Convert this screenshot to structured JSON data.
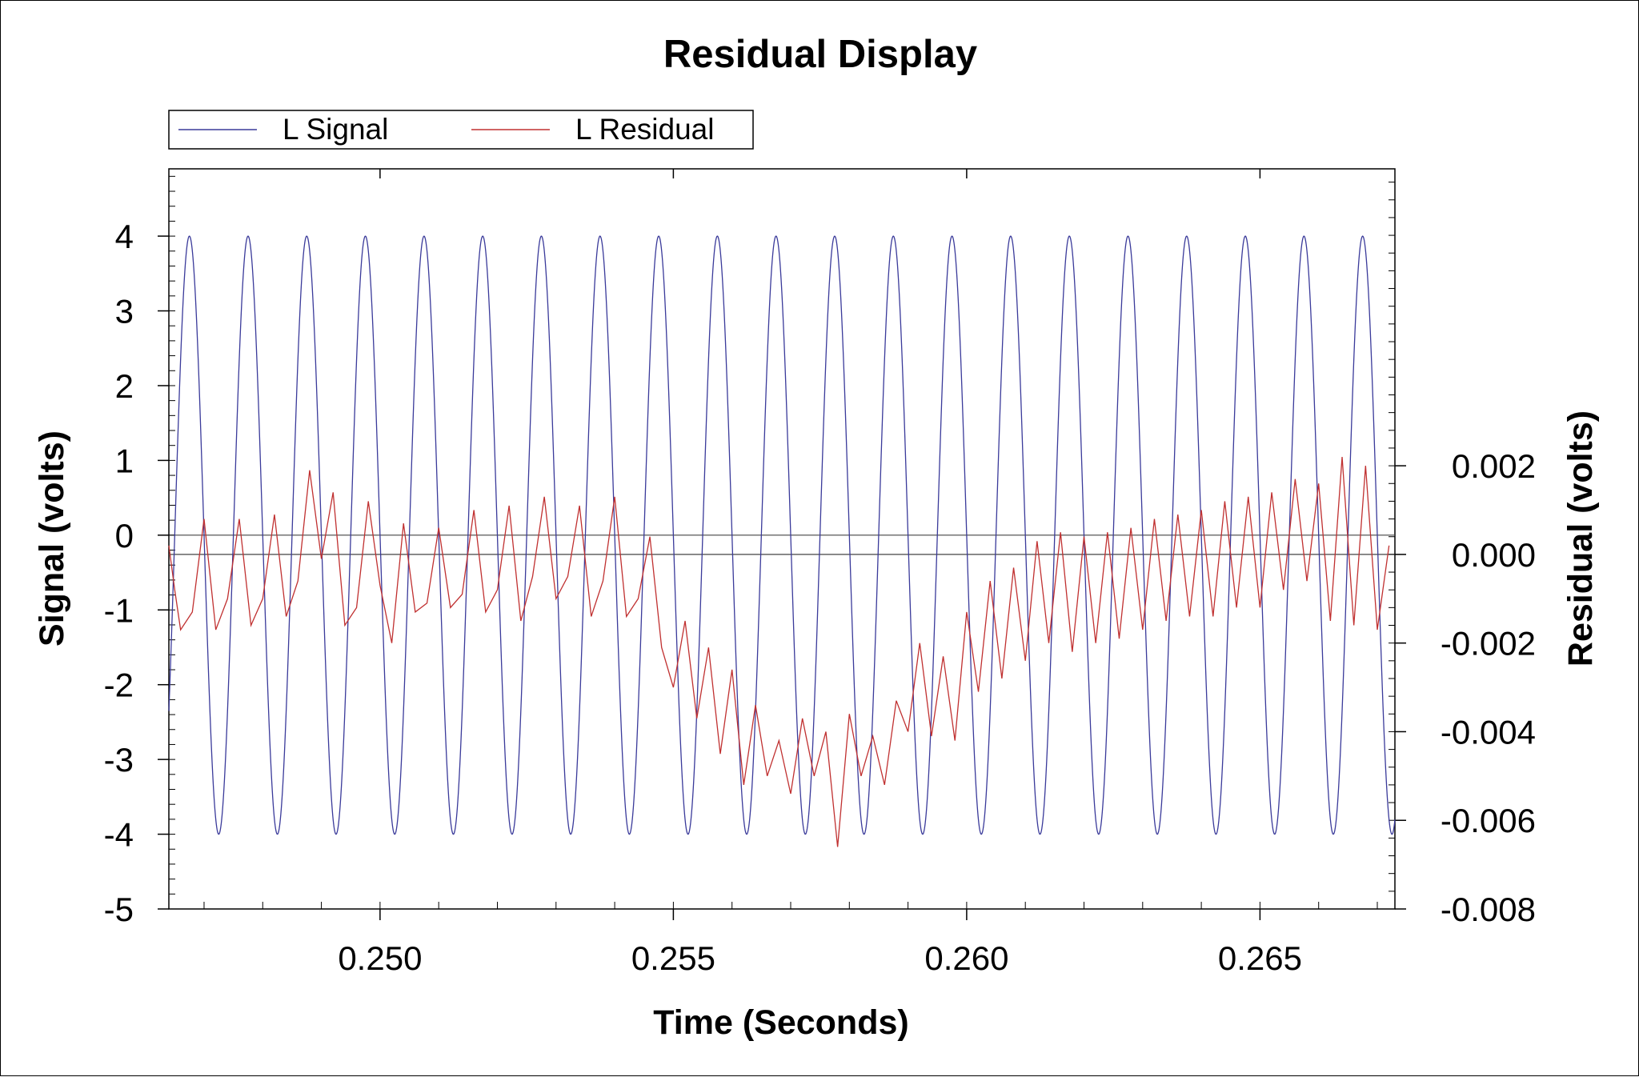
{
  "chart_data": {
    "type": "line",
    "title": "Residual Display",
    "xlabel": "Time (Seconds)",
    "ylabel_left": "Signal (volts)",
    "ylabel_right": "Residual (volts)",
    "xlim": [
      0.2464,
      0.2673
    ],
    "ylim_left": [
      -5,
      4.9
    ],
    "ylim_right": [
      -0.008,
      0.0087
    ],
    "x_ticks": [
      "0.250",
      "0.255",
      "0.260",
      "0.265"
    ],
    "x_tick_values": [
      0.25,
      0.255,
      0.26,
      0.265
    ],
    "y_left_ticks": [
      "4",
      "3",
      "2",
      "1",
      "0",
      "-1",
      "-2",
      "-3",
      "-4",
      "-5"
    ],
    "y_left_tick_values": [
      4,
      3,
      2,
      1,
      0,
      -1,
      -2,
      -3,
      -4,
      -5
    ],
    "y_right_ticks": [
      "0.002",
      "0.000",
      "-0.002",
      "-0.004",
      "-0.006",
      "-0.008"
    ],
    "y_right_tick_values": [
      0.002,
      0.0,
      -0.002,
      -0.004,
      -0.006,
      -0.008
    ],
    "legend_position": "top-left",
    "grid": false,
    "reference_lines": [
      {
        "axis": "left",
        "value": 0
      },
      {
        "axis": "right",
        "value": 0.0
      }
    ],
    "series": [
      {
        "name": "L Signal",
        "axis": "left",
        "color": "#3a3a9a",
        "model": {
          "kind": "sine",
          "amplitude": 4,
          "frequency_hz": 1000,
          "phase_zero_crossing_x": 0.2465
        }
      },
      {
        "name": "L Residual",
        "axis": "right",
        "color": "#c03030",
        "x": [
          0.2464,
          0.2465,
          0.2466,
          0.2468,
          0.247,
          0.2472,
          0.2474,
          0.2476,
          0.2478,
          0.248,
          0.2482,
          0.2484,
          0.2486,
          0.2488,
          0.249,
          0.2492,
          0.2494,
          0.2496,
          0.2498,
          0.25,
          0.2502,
          0.2504,
          0.2506,
          0.2508,
          0.251,
          0.2512,
          0.2514,
          0.2516,
          0.2518,
          0.252,
          0.2522,
          0.2524,
          0.2526,
          0.2528,
          0.253,
          0.2532,
          0.2534,
          0.2536,
          0.2538,
          0.254,
          0.2542,
          0.2544,
          0.2546,
          0.2548,
          0.255,
          0.2552,
          0.2554,
          0.2556,
          0.2558,
          0.256,
          0.2562,
          0.2564,
          0.2566,
          0.2568,
          0.257,
          0.2572,
          0.2574,
          0.2576,
          0.2578,
          0.258,
          0.2582,
          0.2584,
          0.2586,
          0.2588,
          0.259,
          0.2592,
          0.2594,
          0.2596,
          0.2598,
          0.26,
          0.2602,
          0.2604,
          0.2606,
          0.2608,
          0.261,
          0.2612,
          0.2614,
          0.2616,
          0.2618,
          0.262,
          0.2622,
          0.2624,
          0.2626,
          0.2628,
          0.263,
          0.2632,
          0.2634,
          0.2636,
          0.2638,
          0.264,
          0.2642,
          0.2644,
          0.2646,
          0.2648,
          0.265,
          0.2652,
          0.2654,
          0.2656,
          0.2658,
          0.266,
          0.2662,
          0.2664,
          0.2666,
          0.2668,
          0.267,
          0.2672
        ],
        "y": [
          0.0002,
          -0.0008,
          -0.0017,
          -0.0013,
          0.0008,
          -0.0017,
          -0.001,
          0.0008,
          -0.0016,
          -0.001,
          0.0009,
          -0.0014,
          -0.0006,
          0.0019,
          -0.0001,
          0.0014,
          -0.0016,
          -0.0012,
          0.0012,
          -0.0007,
          -0.002,
          0.0007,
          -0.0013,
          -0.0011,
          0.0006,
          -0.0012,
          -0.0009,
          0.001,
          -0.0013,
          -0.0008,
          0.0011,
          -0.0015,
          -0.0005,
          0.0013,
          -0.001,
          -0.0005,
          0.0011,
          -0.0014,
          -0.0006,
          0.0013,
          -0.0014,
          -0.001,
          0.0004,
          -0.0021,
          -0.003,
          -0.0015,
          -0.0037,
          -0.0021,
          -0.0045,
          -0.0026,
          -0.0052,
          -0.0034,
          -0.005,
          -0.0042,
          -0.0054,
          -0.0037,
          -0.005,
          -0.004,
          -0.0066,
          -0.0036,
          -0.005,
          -0.0041,
          -0.0052,
          -0.0033,
          -0.004,
          -0.002,
          -0.0041,
          -0.0023,
          -0.0042,
          -0.0013,
          -0.0031,
          -0.0006,
          -0.0028,
          -0.0003,
          -0.0024,
          0.0003,
          -0.002,
          0.0005,
          -0.0022,
          0.0004,
          -0.002,
          0.0005,
          -0.0019,
          0.0006,
          -0.0017,
          0.0008,
          -0.0015,
          0.0009,
          -0.0014,
          0.001,
          -0.0014,
          0.0012,
          -0.0012,
          0.0013,
          -0.0012,
          0.0014,
          -0.0008,
          0.0017,
          -0.0006,
          0.0016,
          -0.0015,
          0.0022,
          -0.0016,
          0.002,
          -0.0017,
          0.0002
        ]
      }
    ]
  },
  "legend": {
    "items": [
      {
        "label": "L Signal",
        "color": "#3a3a9a"
      },
      {
        "label": "L Residual",
        "color": "#c03030"
      }
    ]
  }
}
